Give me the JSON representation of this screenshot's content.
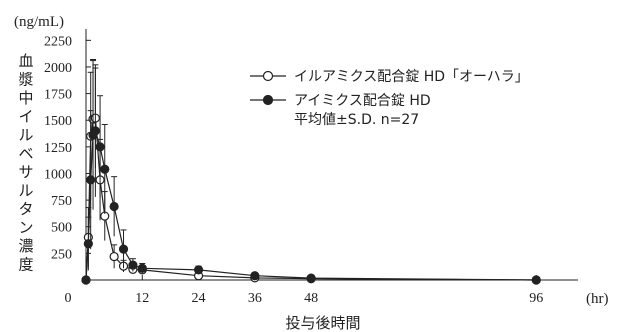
{
  "chart_data": {
    "type": "line",
    "y_unit": "(ng/mL)",
    "x_unit": "(hr)",
    "xlabel": "投与後時間",
    "ylabel": "血漿中イルベサルタン濃度",
    "x_ticks": [
      0,
      12,
      24,
      36,
      48,
      96
    ],
    "y_ticks": [
      250,
      500,
      750,
      1000,
      1250,
      1500,
      1750,
      2000,
      2250
    ],
    "xlim": [
      0,
      100
    ],
    "ylim": [
      0,
      2300
    ],
    "legend_position": "top-right",
    "legend_note": "平均値±S.D. n=27",
    "series": [
      {
        "name": "イルアミクス配合錠 HD「オーハラ」",
        "marker": "open-circle",
        "color": "#222222",
        "x": [
          0,
          0.5,
          1,
          1.5,
          2,
          3,
          4,
          6,
          8,
          10,
          12,
          24,
          36,
          48,
          96
        ],
        "y": [
          0,
          400,
          1350,
          1510,
          1520,
          940,
          600,
          220,
          130,
          100,
          95,
          40,
          20,
          12,
          0
        ],
        "sd": [
          0,
          280,
          600,
          560,
          470,
          380,
          230,
          110,
          55,
          40,
          35,
          15,
          8,
          6,
          0
        ]
      },
      {
        "name": "アイミクス配合錠 HD",
        "marker": "filled-circle",
        "color": "#222222",
        "x": [
          0,
          0.5,
          1,
          1.5,
          2,
          3,
          4,
          6,
          8,
          10,
          12,
          24,
          36,
          48,
          96
        ],
        "y": [
          0,
          340,
          940,
          1360,
          1400,
          1250,
          1040,
          690,
          290,
          140,
          110,
          95,
          40,
          18,
          0
        ],
        "sd": [
          0,
          250,
          650,
          700,
          620,
          480,
          420,
          280,
          180,
          60,
          45,
          35,
          15,
          8,
          0
        ]
      }
    ]
  }
}
